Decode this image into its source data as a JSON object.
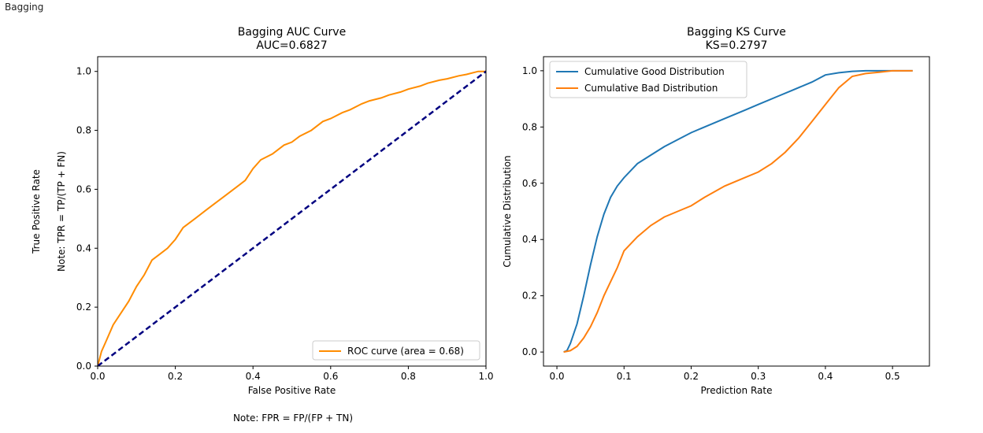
{
  "header_label": "Bagging",
  "chart_data": [
    {
      "type": "line",
      "title": "Bagging AUC Curve",
      "subtitle": "AUC=0.6827",
      "xlabel": "False Positive Rate",
      "ylabel": "True Positive Rate",
      "ylabel_note": "Note: TPR = TP/(TP + FN)",
      "xlabel_note": "Note: FPR = FP/(FP + TN)",
      "xlim": [
        0.0,
        1.0
      ],
      "ylim": [
        0.0,
        1.05
      ],
      "xticks": [
        "0.0",
        "0.2",
        "0.4",
        "0.6",
        "0.8",
        "1.0"
      ],
      "yticks": [
        "0.0",
        "0.2",
        "0.4",
        "0.6",
        "0.8",
        "1.0"
      ],
      "xtick_values": [
        0.0,
        0.2,
        0.4,
        0.6,
        0.8,
        1.0
      ],
      "ytick_values": [
        0.0,
        0.2,
        0.4,
        0.6,
        0.8,
        1.0
      ],
      "legend_position": "lower-right",
      "grid": false,
      "series": [
        {
          "name": "ROC curve (area = 0.68)",
          "color": "#ff8c00",
          "style": "solid",
          "x": [
            0.0,
            0.01,
            0.02,
            0.04,
            0.06,
            0.08,
            0.1,
            0.12,
            0.14,
            0.16,
            0.18,
            0.2,
            0.22,
            0.25,
            0.28,
            0.3,
            0.33,
            0.36,
            0.38,
            0.4,
            0.42,
            0.45,
            0.48,
            0.5,
            0.52,
            0.55,
            0.58,
            0.6,
            0.63,
            0.65,
            0.68,
            0.7,
            0.73,
            0.75,
            0.78,
            0.8,
            0.83,
            0.85,
            0.88,
            0.9,
            0.93,
            0.95,
            0.98,
            1.0
          ],
          "y": [
            0.0,
            0.05,
            0.08,
            0.14,
            0.18,
            0.22,
            0.27,
            0.31,
            0.36,
            0.38,
            0.4,
            0.43,
            0.47,
            0.5,
            0.53,
            0.55,
            0.58,
            0.61,
            0.63,
            0.67,
            0.7,
            0.72,
            0.75,
            0.76,
            0.78,
            0.8,
            0.83,
            0.84,
            0.86,
            0.87,
            0.89,
            0.9,
            0.91,
            0.92,
            0.93,
            0.94,
            0.95,
            0.96,
            0.97,
            0.975,
            0.985,
            0.99,
            1.0,
            1.0
          ]
        },
        {
          "name": "",
          "color": "#000080",
          "style": "dashed",
          "x": [
            0.0,
            1.0
          ],
          "y": [
            0.0,
            1.0
          ]
        }
      ]
    },
    {
      "type": "line",
      "title": "Bagging KS Curve",
      "subtitle": "KS=0.2797",
      "xlabel": "Prediction Rate",
      "ylabel": "Cumulative Distribution",
      "xlim": [
        -0.02,
        0.555
      ],
      "ylim": [
        -0.05,
        1.05
      ],
      "xticks": [
        "0.0",
        "0.1",
        "0.2",
        "0.3",
        "0.4",
        "0.5"
      ],
      "yticks": [
        "0.0",
        "0.2",
        "0.4",
        "0.6",
        "0.8",
        "1.0"
      ],
      "xtick_values": [
        0.0,
        0.1,
        0.2,
        0.3,
        0.4,
        0.5
      ],
      "ytick_values": [
        0.0,
        0.2,
        0.4,
        0.6,
        0.8,
        1.0
      ],
      "legend_position": "top-left",
      "grid": false,
      "series": [
        {
          "name": "Cumulative Good Distribution",
          "color": "#1f77b4",
          "x": [
            0.01,
            0.015,
            0.02,
            0.03,
            0.04,
            0.05,
            0.06,
            0.07,
            0.08,
            0.09,
            0.1,
            0.12,
            0.14,
            0.16,
            0.18,
            0.2,
            0.22,
            0.25,
            0.28,
            0.3,
            0.33,
            0.35,
            0.38,
            0.4,
            0.42,
            0.44,
            0.46,
            0.48,
            0.5,
            0.53
          ],
          "y": [
            0.0,
            0.005,
            0.03,
            0.1,
            0.2,
            0.31,
            0.41,
            0.49,
            0.55,
            0.59,
            0.62,
            0.67,
            0.7,
            0.73,
            0.755,
            0.78,
            0.8,
            0.83,
            0.86,
            0.88,
            0.91,
            0.93,
            0.96,
            0.985,
            0.993,
            0.998,
            1.0,
            1.0,
            1.0,
            1.0
          ]
        },
        {
          "name": "Cumulative Bad Distribution",
          "color": "#ff7f0e",
          "x": [
            0.01,
            0.02,
            0.03,
            0.04,
            0.05,
            0.06,
            0.07,
            0.08,
            0.09,
            0.1,
            0.12,
            0.14,
            0.16,
            0.18,
            0.2,
            0.22,
            0.25,
            0.28,
            0.3,
            0.32,
            0.34,
            0.36,
            0.38,
            0.4,
            0.42,
            0.44,
            0.46,
            0.48,
            0.5,
            0.53
          ],
          "y": [
            0.0,
            0.005,
            0.02,
            0.05,
            0.09,
            0.14,
            0.2,
            0.25,
            0.3,
            0.36,
            0.41,
            0.45,
            0.48,
            0.5,
            0.52,
            0.55,
            0.59,
            0.62,
            0.64,
            0.67,
            0.71,
            0.76,
            0.82,
            0.88,
            0.94,
            0.98,
            0.99,
            0.995,
            1.0,
            1.0
          ]
        }
      ]
    }
  ]
}
